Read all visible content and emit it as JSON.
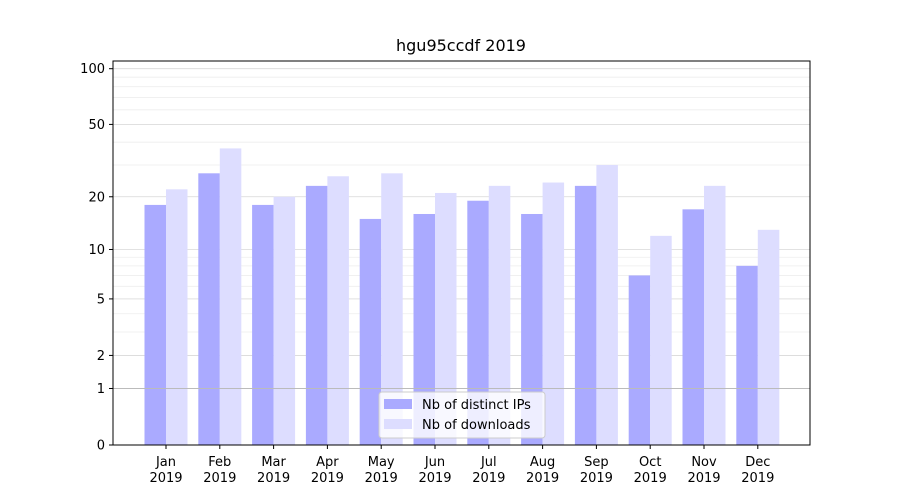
{
  "chart_data": {
    "type": "bar",
    "title": "hgu95ccdf 2019",
    "xlabel": "",
    "ylabel": "",
    "y_scale": "log1p",
    "ylim": [
      0,
      110
    ],
    "yticks": [
      0,
      1,
      2,
      5,
      10,
      20,
      50,
      100
    ],
    "categories": [
      [
        "Jan",
        "2019"
      ],
      [
        "Feb",
        "2019"
      ],
      [
        "Mar",
        "2019"
      ],
      [
        "Apr",
        "2019"
      ],
      [
        "May",
        "2019"
      ],
      [
        "Jun",
        "2019"
      ],
      [
        "Jul",
        "2019"
      ],
      [
        "Aug",
        "2019"
      ],
      [
        "Sep",
        "2019"
      ],
      [
        "Oct",
        "2019"
      ],
      [
        "Nov",
        "2019"
      ],
      [
        "Dec",
        "2019"
      ]
    ],
    "series": [
      {
        "name": "Nb of distinct IPs",
        "color": "#aaaaff",
        "values": [
          18,
          27,
          18,
          23,
          15,
          16,
          19,
          16,
          23,
          7,
          17,
          8
        ]
      },
      {
        "name": "Nb of downloads",
        "color": "#ddddff",
        "values": [
          22,
          37,
          20,
          26,
          27,
          21,
          23,
          24,
          30,
          12,
          23,
          13
        ]
      }
    ],
    "grid": true,
    "legend_position": "lower center"
  }
}
